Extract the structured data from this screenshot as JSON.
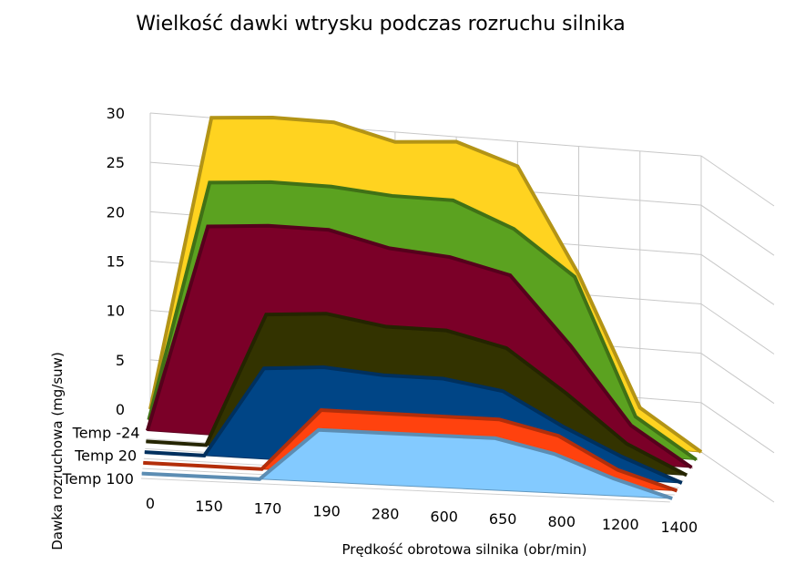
{
  "chart_data": {
    "type": "area",
    "title": "Wielkość dawki wtrysku podczas rozruchu silnika",
    "xlabel": "Prędkość obrotowa silnika (obr/min)",
    "ylabel": "Dawka rozruchowa (mg/suw)",
    "categories": [
      "0",
      "150",
      "170",
      "190",
      "280",
      "600",
      "650",
      "800",
      "1200",
      "1400"
    ],
    "ylim": [
      0,
      30
    ],
    "yticks": [
      0,
      5,
      10,
      15,
      20,
      25,
      30
    ],
    "depth_axis_labels": [
      "Temp -24",
      "Temp 20",
      "Temp 100"
    ],
    "grid": true,
    "series": [
      {
        "color": "#FFD320",
        "values": [
          0,
          30,
          30.5,
          30.5,
          29,
          29.5,
          27.5,
          17,
          4,
          0
        ]
      },
      {
        "color": "#5BA220",
        "values": [
          0,
          25,
          25.5,
          25.5,
          25,
          25,
          22.5,
          18,
          4,
          0
        ]
      },
      {
        "color": "#7B0028",
        "values": [
          0,
          22,
          22.5,
          22.5,
          21,
          20.5,
          19,
          12,
          4,
          0
        ]
      },
      {
        "name": "Temp -24",
        "color": "#333300",
        "values": [
          0,
          0,
          14.5,
          15,
          14,
          14,
          12.5,
          8,
          3,
          0
        ]
      },
      {
        "color": "#004586",
        "values": [
          0,
          0,
          10,
          10.5,
          10,
          10,
          9,
          5.5,
          2.5,
          0
        ]
      },
      {
        "name": "Temp 20",
        "color": "#FF420E",
        "values": [
          0,
          0,
          0,
          7,
          7,
          7,
          7,
          5.5,
          2,
          0
        ]
      },
      {
        "name": "Temp 100",
        "color": "#83CAFF",
        "values": [
          0,
          0,
          0,
          6,
          6,
          6,
          6,
          4.5,
          2,
          0
        ]
      }
    ]
  }
}
